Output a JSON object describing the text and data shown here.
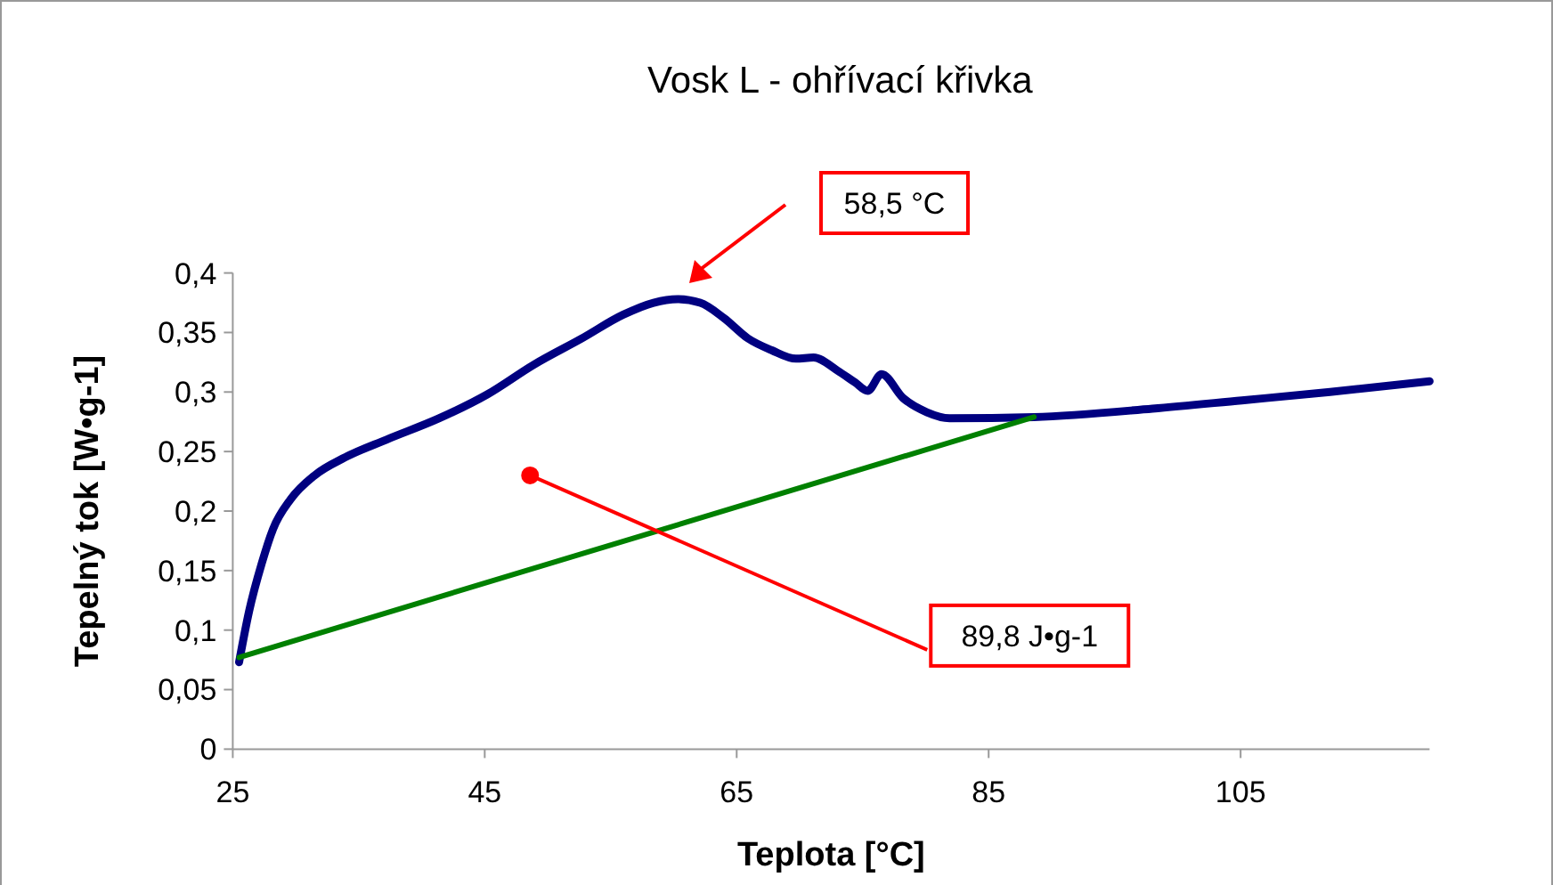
{
  "chart_data": {
    "type": "line",
    "title": "Vosk L - ohřívací křivka",
    "xlabel": "Teplota [°C]",
    "ylabel": "Tepelný tok [W•g-1]",
    "xlim": [
      25,
      120
    ],
    "xticks": [
      25,
      45,
      65,
      85,
      105
    ],
    "ylim": [
      0,
      0.4
    ],
    "yticks": [
      {
        "value": 0,
        "label": "0"
      },
      {
        "value": 0.05,
        "label": "0,05"
      },
      {
        "value": 0.1,
        "label": "0,1"
      },
      {
        "value": 0.15,
        "label": "0,15"
      },
      {
        "value": 0.2,
        "label": "0,2"
      },
      {
        "value": 0.25,
        "label": "0,25"
      },
      {
        "value": 0.3,
        "label": "0,3"
      },
      {
        "value": 0.35,
        "label": "0,35"
      },
      {
        "value": 0.4,
        "label": "0,4"
      }
    ],
    "grid": false,
    "series": [
      {
        "color": "#000080",
        "x": [
          25.5,
          26.3,
          27.3,
          28.2,
          29.6,
          31.5,
          33.9,
          37.2,
          41.4,
          45.2,
          48.9,
          52.7,
          56.0,
          58.4,
          60.3,
          62.1,
          64.0,
          65.9,
          67.8,
          69.7,
          71.1,
          73.0,
          74.4,
          75.4,
          76.5,
          78.2,
          80.1,
          81.9,
          88.6,
          98.0,
          105.1,
          112.1,
          120
        ],
        "values": [
          0.073,
          0.116,
          0.156,
          0.185,
          0.21,
          0.23,
          0.245,
          0.26,
          0.278,
          0.298,
          0.323,
          0.345,
          0.365,
          0.375,
          0.378,
          0.375,
          0.362,
          0.345,
          0.335,
          0.328,
          0.329,
          0.318,
          0.308,
          0.301,
          0.315,
          0.295,
          0.283,
          0.278,
          0.279,
          0.286,
          0.293,
          0.3,
          0.309
        ]
      },
      {
        "color": "#008000",
        "x": [
          25.5,
          88.6
        ],
        "values": [
          0.077,
          0.279
        ]
      }
    ],
    "annotations": [
      "58,5 °C",
      {
        "text": "89,8 J•g-1",
        "x": 48.6,
        "y": 0.23
      }
    ]
  }
}
